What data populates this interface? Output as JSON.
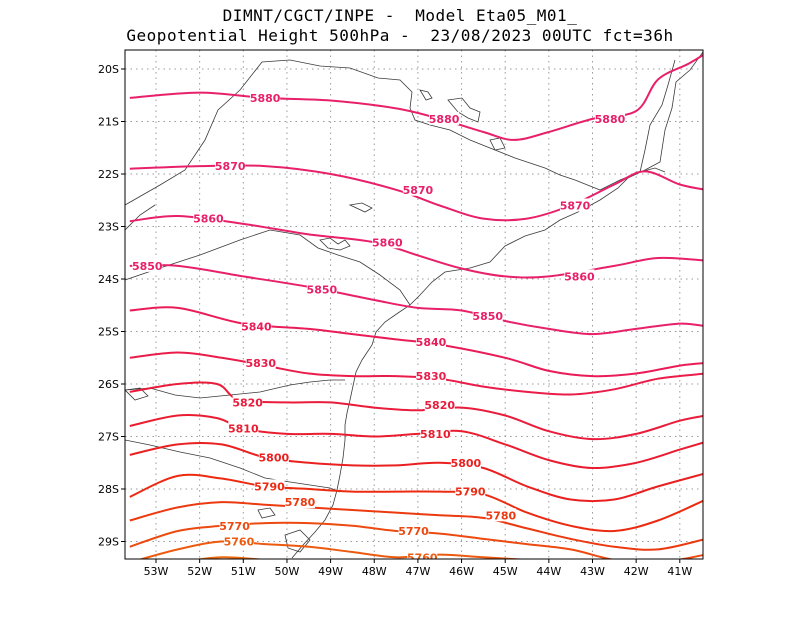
{
  "title": {
    "line1": "DIMNT/CGCT/INPE -  Model Eta05_M01_",
    "line2": "Geopotential Height 500hPa -  23/08/2023 00UTC fct=36h"
  },
  "axes": {
    "lon_labels": [
      "53W",
      "52W",
      "51W",
      "50W",
      "49W",
      "48W",
      "47W",
      "46W",
      "45W",
      "44W",
      "43W",
      "42W",
      "41W"
    ],
    "lat_labels": [
      "20S",
      "21S",
      "22S",
      "23S",
      "24S",
      "25S",
      "26S",
      "27S",
      "28S",
      "29S"
    ]
  },
  "chart_data": {
    "type": "contour-map",
    "variable": "Geopotential Height 500hPa",
    "lon_range": [
      -53.6,
      -40.4
    ],
    "lat_range": [
      -29.4,
      -19.7
    ],
    "contours": [
      {
        "value": 5880,
        "color": "#e8206a",
        "labels": [
          {
            "text": "5880",
            "lon": -50.5,
            "lat": -20.55
          },
          {
            "text": "5880",
            "lon": -46.4,
            "lat": -20.95
          },
          {
            "text": "5880",
            "lon": -42.6,
            "lat": -20.95
          }
        ],
        "points": [
          [
            -53.6,
            -20.55
          ],
          [
            -52,
            -20.45
          ],
          [
            -50.5,
            -20.55
          ],
          [
            -49,
            -20.6
          ],
          [
            -47.5,
            -20.75
          ],
          [
            -46.5,
            -20.95
          ],
          [
            -45.5,
            -21.2
          ],
          [
            -44.8,
            -21.35
          ],
          [
            -44,
            -21.2
          ],
          [
            -43,
            -20.95
          ],
          [
            -42,
            -20.8
          ],
          [
            -41.5,
            -20.2
          ],
          [
            -40.8,
            -19.9
          ],
          [
            -40.4,
            -19.7
          ]
        ]
      },
      {
        "value": 5870,
        "color": "#e8206a",
        "labels": [
          {
            "text": "5870",
            "lon": -51.3,
            "lat": -21.85
          },
          {
            "text": "5870",
            "lon": -47,
            "lat": -22.3
          },
          {
            "text": "5870",
            "lon": -43.4,
            "lat": -22.6
          }
        ],
        "points": [
          [
            -53.6,
            -21.9
          ],
          [
            -52,
            -21.85
          ],
          [
            -50.5,
            -21.85
          ],
          [
            -49,
            -22
          ],
          [
            -47.5,
            -22.3
          ],
          [
            -46.5,
            -22.6
          ],
          [
            -45.5,
            -22.85
          ],
          [
            -44.5,
            -22.85
          ],
          [
            -43.5,
            -22.6
          ],
          [
            -42.5,
            -22.2
          ],
          [
            -41.8,
            -21.95
          ],
          [
            -41,
            -22.2
          ],
          [
            -40.4,
            -22.3
          ]
        ]
      },
      {
        "value": 5860,
        "color": "#e8206a",
        "labels": [
          {
            "text": "5860",
            "lon": -51.8,
            "lat": -22.85
          },
          {
            "text": "5860",
            "lon": -47.7,
            "lat": -23.3
          },
          {
            "text": "5860",
            "lon": -43.3,
            "lat": -23.95
          }
        ],
        "points": [
          [
            -53.6,
            -22.9
          ],
          [
            -52.5,
            -22.8
          ],
          [
            -51,
            -22.95
          ],
          [
            -49.5,
            -23.15
          ],
          [
            -48,
            -23.3
          ],
          [
            -47,
            -23.55
          ],
          [
            -46,
            -23.8
          ],
          [
            -45,
            -23.95
          ],
          [
            -44,
            -23.95
          ],
          [
            -42.5,
            -23.75
          ],
          [
            -41.5,
            -23.6
          ],
          [
            -40.4,
            -23.65
          ]
        ]
      },
      {
        "value": 5850,
        "color": "#e8206a",
        "labels": [
          {
            "text": "5850",
            "lon": -53.2,
            "lat": -23.75
          },
          {
            "text": "5850",
            "lon": -49.2,
            "lat": -24.2
          },
          {
            "text": "5850",
            "lon": -45.4,
            "lat": -24.7
          }
        ],
        "points": [
          [
            -53.6,
            -23.75
          ],
          [
            -52.5,
            -23.75
          ],
          [
            -51,
            -23.95
          ],
          [
            -49.5,
            -24.15
          ],
          [
            -48,
            -24.4
          ],
          [
            -47,
            -24.55
          ],
          [
            -46,
            -24.6
          ],
          [
            -45,
            -24.8
          ],
          [
            -44,
            -24.95
          ],
          [
            -43,
            -25.05
          ],
          [
            -42,
            -24.95
          ],
          [
            -41,
            -24.85
          ],
          [
            -40.4,
            -24.9
          ]
        ]
      },
      {
        "value": 5840,
        "color": "#ea1c58",
        "labels": [
          {
            "text": "5840",
            "lon": -50.7,
            "lat": -24.9
          },
          {
            "text": "5840",
            "lon": -46.7,
            "lat": -25.2
          }
        ],
        "points": [
          [
            -53.6,
            -24.6
          ],
          [
            -52.5,
            -24.55
          ],
          [
            -51,
            -24.85
          ],
          [
            -49.5,
            -24.95
          ],
          [
            -48.5,
            -25.05
          ],
          [
            -47.5,
            -25.15
          ],
          [
            -46.5,
            -25.25
          ],
          [
            -45,
            -25.5
          ],
          [
            -44,
            -25.75
          ],
          [
            -43,
            -25.85
          ],
          [
            -42,
            -25.8
          ],
          [
            -41,
            -25.65
          ],
          [
            -40.4,
            -25.6
          ]
        ]
      },
      {
        "value": 5830,
        "color": "#ea1c4a",
        "labels": [
          {
            "text": "5830",
            "lon": -50.6,
            "lat": -25.6
          },
          {
            "text": "5830",
            "lon": -46.7,
            "lat": -25.85
          }
        ],
        "points": [
          [
            -53.6,
            -25.5
          ],
          [
            -52.5,
            -25.4
          ],
          [
            -51.5,
            -25.5
          ],
          [
            -50.5,
            -25.65
          ],
          [
            -49.5,
            -25.8
          ],
          [
            -48.5,
            -25.85
          ],
          [
            -47.5,
            -25.85
          ],
          [
            -46.5,
            -25.9
          ],
          [
            -45.5,
            -26.05
          ],
          [
            -44.5,
            -26.15
          ],
          [
            -43.5,
            -26.2
          ],
          [
            -42.5,
            -26.1
          ],
          [
            -41.5,
            -25.9
          ],
          [
            -40.4,
            -25.8
          ]
        ]
      },
      {
        "value": 5820,
        "color": "#ea1c3c",
        "labels": [
          {
            "text": "5820",
            "lon": -50.9,
            "lat": -26.35
          },
          {
            "text": "5820",
            "lon": -46.5,
            "lat": -26.4
          }
        ],
        "points": [
          [
            -53.6,
            -26.15
          ],
          [
            -52.5,
            -26.0
          ],
          [
            -51.6,
            -26.0
          ],
          [
            -51.1,
            -26.3
          ],
          [
            -50,
            -26.35
          ],
          [
            -49,
            -26.35
          ],
          [
            -48,
            -26.45
          ],
          [
            -47,
            -26.5
          ],
          [
            -46,
            -26.45
          ],
          [
            -45,
            -26.6
          ],
          [
            -44,
            -26.9
          ],
          [
            -43,
            -27.05
          ],
          [
            -42,
            -26.95
          ],
          [
            -41,
            -26.7
          ],
          [
            -40.4,
            -26.6
          ]
        ]
      },
      {
        "value": 5810,
        "color": "#ea1c30",
        "labels": [
          {
            "text": "5810",
            "lon": -51.0,
            "lat": -26.85
          },
          {
            "text": "5810",
            "lon": -46.6,
            "lat": -26.95
          }
        ],
        "points": [
          [
            -53.6,
            -26.8
          ],
          [
            -52.5,
            -26.6
          ],
          [
            -51.6,
            -26.65
          ],
          [
            -51.0,
            -26.85
          ],
          [
            -50,
            -26.95
          ],
          [
            -49,
            -26.95
          ],
          [
            -48,
            -27.0
          ],
          [
            -47,
            -26.95
          ],
          [
            -46,
            -26.9
          ],
          [
            -45,
            -27.15
          ],
          [
            -44,
            -27.45
          ],
          [
            -43,
            -27.6
          ],
          [
            -42,
            -27.5
          ],
          [
            -41,
            -27.25
          ],
          [
            -40.4,
            -27.1
          ]
        ]
      },
      {
        "value": 5800,
        "color": "#ea2020",
        "labels": [
          {
            "text": "5800",
            "lon": -50.3,
            "lat": -27.4
          },
          {
            "text": "5800",
            "lon": -45.9,
            "lat": -27.5
          }
        ],
        "points": [
          [
            -53.6,
            -27.35
          ],
          [
            -52.5,
            -27.15
          ],
          [
            -51.5,
            -27.15
          ],
          [
            -50.5,
            -27.4
          ],
          [
            -49.5,
            -27.5
          ],
          [
            -48.5,
            -27.55
          ],
          [
            -47.5,
            -27.55
          ],
          [
            -46.5,
            -27.5
          ],
          [
            -45.5,
            -27.6
          ],
          [
            -44.5,
            -27.95
          ],
          [
            -43.5,
            -28.2
          ],
          [
            -42.5,
            -28.2
          ],
          [
            -41.5,
            -27.95
          ],
          [
            -40.4,
            -27.7
          ]
        ]
      },
      {
        "value": 5790,
        "color": "#ec2a10",
        "labels": [
          {
            "text": "5790",
            "lon": -50.4,
            "lat": -27.95
          },
          {
            "text": "5790",
            "lon": -45.8,
            "lat": -28.05
          }
        ],
        "points": [
          [
            -53.6,
            -28.15
          ],
          [
            -52.5,
            -27.75
          ],
          [
            -51.5,
            -27.8
          ],
          [
            -50.5,
            -27.95
          ],
          [
            -49.5,
            -28.0
          ],
          [
            -48.5,
            -28.05
          ],
          [
            -47.5,
            -28.05
          ],
          [
            -46.5,
            -28.05
          ],
          [
            -45.5,
            -28.1
          ],
          [
            -44.5,
            -28.45
          ],
          [
            -43.5,
            -28.7
          ],
          [
            -42.5,
            -28.8
          ],
          [
            -41.5,
            -28.6
          ],
          [
            -40.4,
            -28.2
          ]
        ]
      },
      {
        "value": 5780,
        "color": "#ec3a10",
        "labels": [
          {
            "text": "5780",
            "lon": -49.7,
            "lat": -28.25
          },
          {
            "text": "5780",
            "lon": -45.1,
            "lat": -28.5
          }
        ],
        "points": [
          [
            -53.6,
            -28.6
          ],
          [
            -52.5,
            -28.35
          ],
          [
            -51.5,
            -28.25
          ],
          [
            -50.5,
            -28.3
          ],
          [
            -49.5,
            -28.35
          ],
          [
            -48.5,
            -28.4
          ],
          [
            -47.5,
            -28.45
          ],
          [
            -46.5,
            -28.5
          ],
          [
            -45.5,
            -28.55
          ],
          [
            -44.5,
            -28.75
          ],
          [
            -43.5,
            -28.95
          ],
          [
            -42.5,
            -29.1
          ],
          [
            -41.5,
            -29.15
          ],
          [
            -40.4,
            -28.95
          ]
        ]
      },
      {
        "value": 5770,
        "color": "#ec4a10",
        "labels": [
          {
            "text": "5770",
            "lon": -51.2,
            "lat": -28.7
          },
          {
            "text": "5770",
            "lon": -47.1,
            "lat": -28.8
          }
        ],
        "points": [
          [
            -53.6,
            -29.1
          ],
          [
            -52.5,
            -28.8
          ],
          [
            -51.5,
            -28.7
          ],
          [
            -50.5,
            -28.65
          ],
          [
            -49.5,
            -28.65
          ],
          [
            -48.5,
            -28.7
          ],
          [
            -47.5,
            -28.8
          ],
          [
            -46.5,
            -28.85
          ],
          [
            -45.5,
            -28.95
          ],
          [
            -44.5,
            -29.05
          ],
          [
            -43.5,
            -29.15
          ],
          [
            -42.5,
            -29.35
          ],
          [
            -41.5,
            -29.4
          ],
          [
            -40.4,
            -29.25
          ]
        ]
      },
      {
        "value": 5760,
        "color": "#ec5a10",
        "labels": [
          {
            "text": "5760",
            "lon": -51.1,
            "lat": -29.0
          },
          {
            "text": "5760",
            "lon": -46.9,
            "lat": -29.3
          }
        ],
        "points": [
          [
            -53.6,
            -29.4
          ],
          [
            -52.5,
            -29.15
          ],
          [
            -51.5,
            -29.0
          ],
          [
            -50.5,
            -29.05
          ],
          [
            -49.5,
            -29.1
          ],
          [
            -48.5,
            -29.2
          ],
          [
            -47.5,
            -29.3
          ],
          [
            -46.5,
            -29.25
          ],
          [
            -45.5,
            -29.3
          ],
          [
            -44.5,
            -29.35
          ],
          [
            -43.5,
            -29.4
          ]
        ]
      },
      {
        "value": 5750,
        "color": "#ec6a10",
        "labels": [],
        "points": [
          [
            -52.5,
            -29.4
          ],
          [
            -51.5,
            -29.3
          ],
          [
            -50.5,
            -29.35
          ],
          [
            -49.5,
            -29.4
          ]
        ]
      }
    ]
  },
  "colors": {
    "grid": "#9a9a9a",
    "coast": "#3a3a3a",
    "frame": "#000000"
  }
}
